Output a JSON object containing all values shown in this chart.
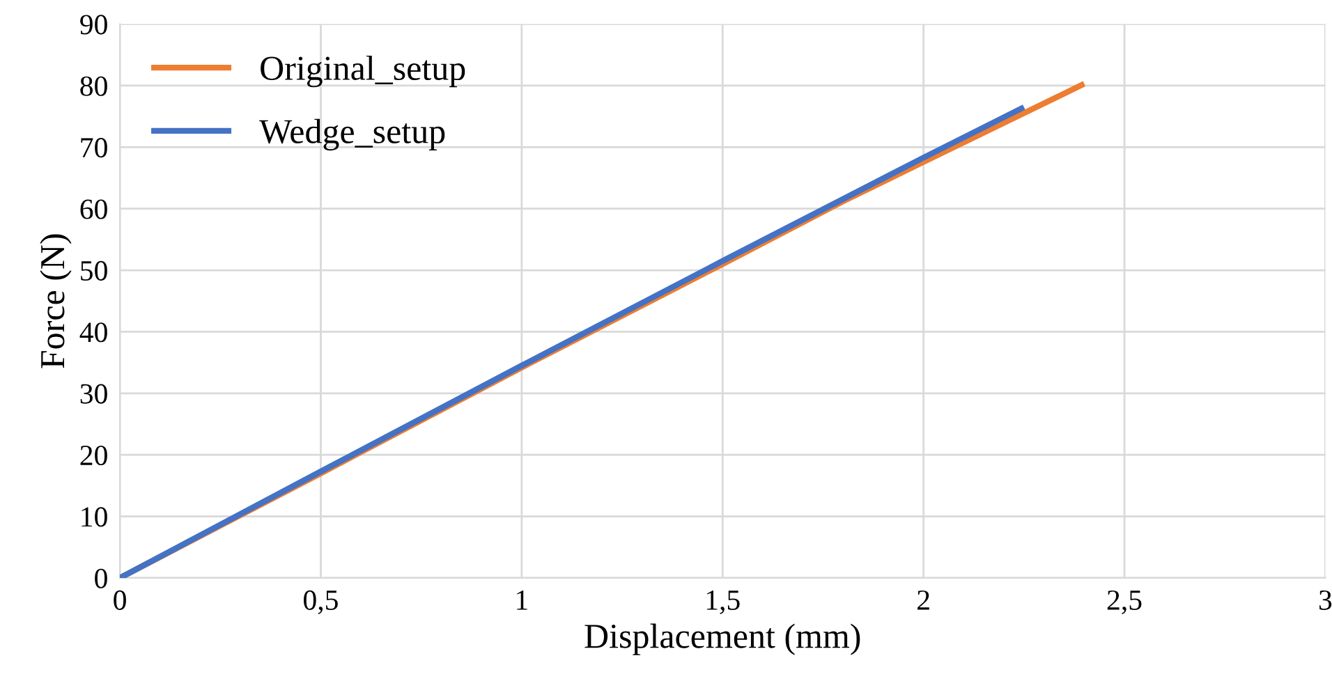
{
  "chart_data": {
    "type": "line",
    "xlabel": "Displacement (mm)",
    "ylabel": "Force (N)",
    "xlim": [
      0,
      3
    ],
    "ylim": [
      0,
      90
    ],
    "xticks": [
      0,
      {
        "value": 0.5,
        "label": "0,5"
      },
      1,
      {
        "value": 1.5,
        "label": "1,5"
      },
      2,
      {
        "value": 2.5,
        "label": "2,5"
      },
      3
    ],
    "yticks": [
      0,
      10,
      20,
      30,
      40,
      50,
      60,
      70,
      80,
      90
    ],
    "grid": true,
    "legend": "top left",
    "marker": "none",
    "line_style": "solid",
    "series": [
      {
        "name": "Original_setup",
        "color": "#ed7d31",
        "x": [
          0,
          0.5,
          1,
          1.5,
          1.8,
          2,
          2.4
        ],
        "values": [
          0,
          17,
          34.2,
          51,
          61.2,
          67.6,
          80.3
        ]
      },
      {
        "name": "Wedge_setup",
        "color": "#4472c4",
        "x": [
          0,
          0.5,
          1,
          1.5,
          2,
          2.25
        ],
        "values": [
          0,
          17.3,
          34.5,
          51.5,
          68.3,
          76.5
        ]
      }
    ]
  }
}
